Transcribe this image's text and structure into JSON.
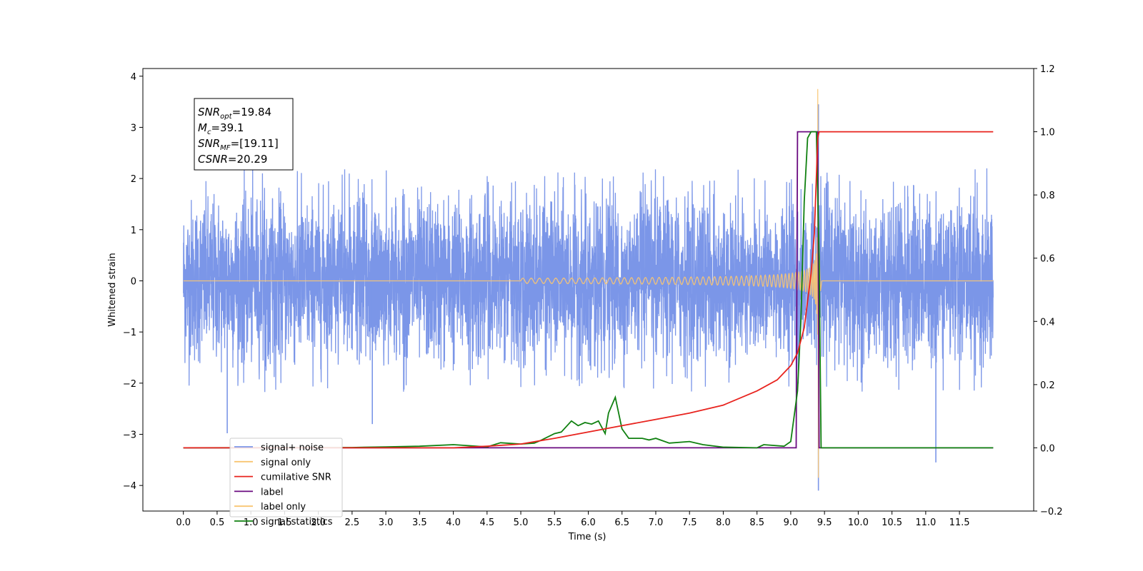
{
  "chart_data": {
    "type": "line",
    "xlabel": "Time (s)",
    "ylabel": "Whitened strain",
    "xlim": [
      -0.6,
      12.6
    ],
    "ylim": [
      -4.5,
      4.15
    ],
    "y2lim": [
      -0.2,
      1.2
    ],
    "x_ticks": [
      "0.0",
      "0.5",
      "1.0",
      "1.5",
      "2.0",
      "2.5",
      "3.0",
      "3.5",
      "4.0",
      "4.5",
      "5.0",
      "5.5",
      "6.0",
      "6.5",
      "7.0",
      "7.5",
      "8.0",
      "8.5",
      "9.0",
      "9.5",
      "10.0",
      "10.5",
      "11.0",
      "11.5"
    ],
    "y_ticks": [
      "4",
      "3",
      "2",
      "1",
      "0",
      "−1",
      "−2",
      "−3",
      "−4"
    ],
    "y2_ticks": [
      "1.2",
      "1.0",
      "0.8",
      "0.6",
      "0.4",
      "0.2",
      "0.0",
      "−0.2"
    ],
    "legend_position": "lower-left",
    "annotation": {
      "snr_opt": "=19.84",
      "mc": "=39.1",
      "snr_mf": "=[19.11]",
      "csnr": "=20.29"
    },
    "series": [
      {
        "name": "signal+ noise",
        "color": "#7b96e8",
        "axis": "left",
        "x_range": [
          0.0,
          12.0
        ],
        "envelope_max": 2.2,
        "peaks": [
          {
            "x": 0.65,
            "y": -2.98
          },
          {
            "x": 2.8,
            "y": -2.8
          },
          {
            "x": 9.41,
            "y": 3.45
          },
          {
            "x": 9.41,
            "y": -4.1
          },
          {
            "x": 11.15,
            "y": -3.55
          }
        ]
      },
      {
        "name": "signal only",
        "color": "#f9c572",
        "axis": "left",
        "chirp_start": 5.0,
        "merger": 9.4,
        "peak": 3.75,
        "trough": -3.85
      },
      {
        "name": "cumilative SNR",
        "color": "#e8231e",
        "axis": "right",
        "x": [
          0.0,
          4.0,
          4.5,
          5.0,
          5.5,
          6.0,
          6.5,
          7.0,
          7.5,
          8.0,
          8.5,
          8.8,
          9.0,
          9.1,
          9.2,
          9.3,
          9.35,
          9.4,
          9.42,
          12.0
        ],
        "values": [
          0.0,
          0.0,
          0.005,
          0.012,
          0.03,
          0.05,
          0.07,
          0.09,
          0.11,
          0.135,
          0.18,
          0.215,
          0.26,
          0.3,
          0.38,
          0.55,
          0.68,
          0.98,
          1.0,
          1.0
        ]
      },
      {
        "name": "label",
        "color": "#6a0a80",
        "axis": "right",
        "x": [
          0.0,
          9.08,
          9.1,
          9.4,
          9.42,
          12.0
        ],
        "values": [
          0.0,
          0.0,
          1.0,
          1.0,
          0.0,
          0.0
        ]
      },
      {
        "name": "label only",
        "color": "#f9c572",
        "axis": "right",
        "x": [],
        "values": []
      },
      {
        "name": "signal statistics",
        "color": "#108010",
        "axis": "right",
        "x": [
          0.0,
          2.5,
          3.0,
          3.5,
          4.0,
          4.5,
          4.7,
          5.0,
          5.2,
          5.3,
          5.5,
          5.6,
          5.75,
          5.85,
          5.95,
          6.05,
          6.15,
          6.25,
          6.3,
          6.4,
          6.5,
          6.6,
          6.8,
          6.9,
          7.0,
          7.2,
          7.5,
          7.7,
          8.0,
          8.5,
          8.6,
          8.9,
          9.0,
          9.1,
          9.15,
          9.2,
          9.25,
          9.3,
          9.38,
          9.42,
          9.45,
          12.0
        ],
        "values": [
          0.0,
          0.001,
          0.003,
          0.005,
          0.01,
          0.003,
          0.016,
          0.012,
          0.015,
          0.024,
          0.045,
          0.05,
          0.085,
          0.07,
          0.08,
          0.075,
          0.085,
          0.045,
          0.11,
          0.16,
          0.06,
          0.03,
          0.03,
          0.025,
          0.03,
          0.015,
          0.02,
          0.01,
          0.002,
          0.0,
          0.01,
          0.005,
          0.02,
          0.18,
          0.4,
          0.78,
          0.98,
          1.0,
          1.0,
          0.6,
          0.0,
          0.0
        ]
      }
    ]
  }
}
